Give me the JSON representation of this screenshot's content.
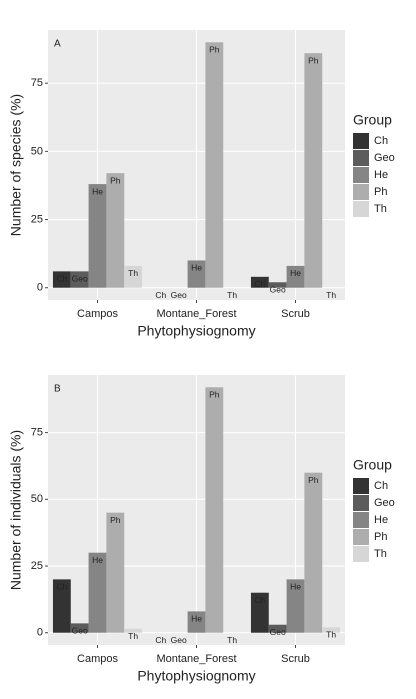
{
  "chart_data": [
    {
      "type": "bar",
      "tag": "A",
      "ylabel": "Number of species (%)",
      "xlabel": "Phytophysiognomy",
      "categories": [
        "Campos",
        "Montane_Forest",
        "Scrub"
      ],
      "legend_title": "Group",
      "series": [
        {
          "name": "Ch",
          "color": "#333333",
          "values": [
            6,
            0,
            4
          ]
        },
        {
          "name": "Geo",
          "color": "#5c5c5c",
          "values": [
            6,
            0,
            2
          ]
        },
        {
          "name": "He",
          "color": "#858585",
          "values": [
            38,
            10,
            8
          ]
        },
        {
          "name": "Ph",
          "color": "#adadad",
          "values": [
            42,
            90,
            86
          ]
        },
        {
          "name": "Th",
          "color": "#d6d6d6",
          "values": [
            8,
            0,
            0
          ]
        }
      ],
      "ylim": [
        -4.5,
        94.5
      ],
      "yticks": [
        0,
        25,
        50,
        75
      ],
      "grid": true
    },
    {
      "type": "bar",
      "tag": "B",
      "ylabel": "Number of individuals (%)",
      "xlabel": "Phytophysiognomy",
      "categories": [
        "Campos",
        "Montane_Forest",
        "Scrub"
      ],
      "legend_title": "Group",
      "series": [
        {
          "name": "Ch",
          "color": "#333333",
          "values": [
            20,
            0,
            15
          ]
        },
        {
          "name": "Geo",
          "color": "#5c5c5c",
          "values": [
            3.5,
            0,
            3
          ]
        },
        {
          "name": "He",
          "color": "#858585",
          "values": [
            30,
            8,
            20
          ]
        },
        {
          "name": "Ph",
          "color": "#adadad",
          "values": [
            45,
            92,
            60
          ]
        },
        {
          "name": "Th",
          "color": "#d6d6d6",
          "values": [
            1.5,
            0,
            2
          ]
        }
      ],
      "ylim": [
        -4.6,
        96.6
      ],
      "yticks": [
        0,
        25,
        50,
        75
      ],
      "grid": true
    }
  ]
}
